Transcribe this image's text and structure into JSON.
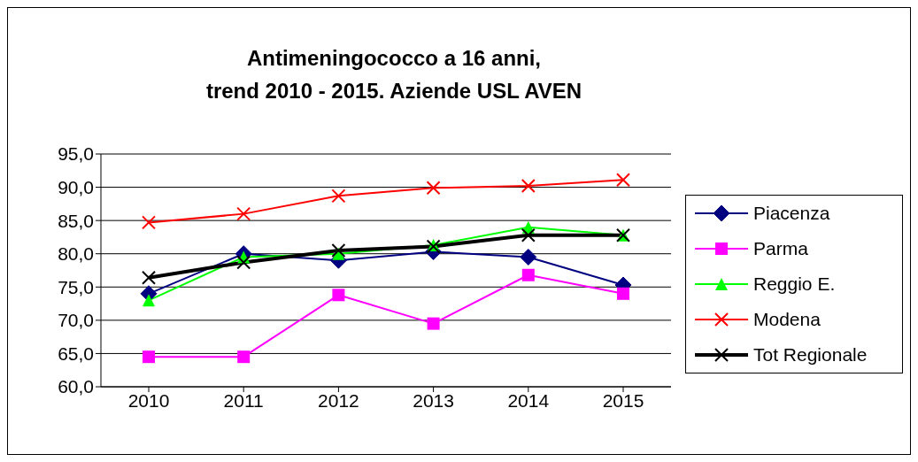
{
  "chart_data": {
    "type": "line",
    "title": "Antimeningococco a 16 anni,\ntrend 2010 - 2015. Aziende USL AVEN",
    "categories": [
      "2010",
      "2011",
      "2012",
      "2013",
      "2014",
      "2015"
    ],
    "series": [
      {
        "name": "Piacenza",
        "color": "#000080",
        "marker": "diamond",
        "values": [
          74.0,
          80.0,
          79.0,
          80.3,
          79.5,
          75.3
        ]
      },
      {
        "name": "Parma",
        "color": "#ff00ff",
        "marker": "square",
        "values": [
          64.5,
          64.5,
          73.8,
          69.5,
          76.8,
          74.0
        ]
      },
      {
        "name": "Reggio E.",
        "color": "#00ff00",
        "marker": "triangle",
        "values": [
          73.0,
          79.5,
          80.0,
          81.3,
          84.0,
          82.8
        ]
      },
      {
        "name": "Modena",
        "color": "#ff0000",
        "marker": "cross",
        "values": [
          84.7,
          86.0,
          88.7,
          89.9,
          90.2,
          91.1
        ]
      },
      {
        "name": "Tot Regionale",
        "color": "#000000",
        "marker": "cross",
        "values": [
          76.4,
          78.7,
          80.5,
          81.1,
          82.8,
          82.8
        ]
      }
    ],
    "ylim": [
      60,
      95
    ],
    "yticks": [
      {
        "value": 60,
        "label": "60,0"
      },
      {
        "value": 65,
        "label": "65,0"
      },
      {
        "value": 70,
        "label": "70,0"
      },
      {
        "value": 75,
        "label": "75,0"
      },
      {
        "value": 80,
        "label": "80,0"
      },
      {
        "value": 85,
        "label": "85,0"
      },
      {
        "value": 90,
        "label": "90,0"
      },
      {
        "value": 95,
        "label": "95,0"
      }
    ],
    "grid": "y",
    "legend": "right"
  }
}
